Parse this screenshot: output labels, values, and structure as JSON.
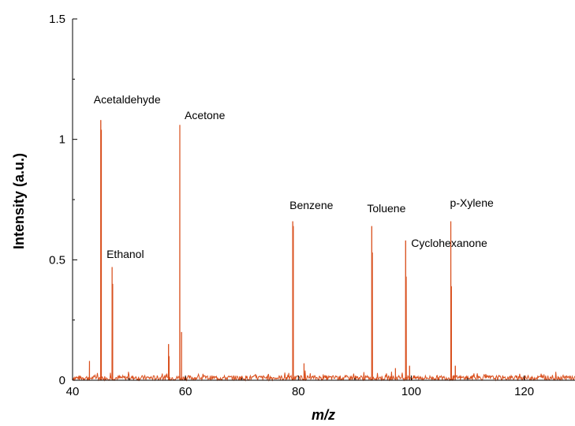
{
  "chart_data": {
    "type": "line",
    "title": "",
    "xlabel": "m/z",
    "ylabel": "Intensity (a.u.)",
    "xlim": [
      40,
      129
    ],
    "ylim": [
      0,
      1.5
    ],
    "x_ticks": [
      40,
      60,
      80,
      100,
      120
    ],
    "y_ticks": [
      0,
      0.5,
      1,
      1.5
    ],
    "x_tick_labels": [
      "40",
      "60",
      "80",
      "100",
      "120"
    ],
    "y_tick_labels": [
      "0",
      "0.5",
      "1",
      "1.5"
    ],
    "grid": false,
    "line_color": "#d9501e",
    "noise_level": 0.02,
    "peaks": [
      {
        "x": 43,
        "y": 0.08
      },
      {
        "x": 45,
        "y": 1.08
      },
      {
        "x": 45.1,
        "y": 1.04
      },
      {
        "x": 47,
        "y": 0.47
      },
      {
        "x": 47.1,
        "y": 0.4
      },
      {
        "x": 57,
        "y": 0.15
      },
      {
        "x": 57.1,
        "y": 0.1
      },
      {
        "x": 59,
        "y": 1.06
      },
      {
        "x": 59.3,
        "y": 0.2
      },
      {
        "x": 79,
        "y": 0.66
      },
      {
        "x": 79.1,
        "y": 0.64
      },
      {
        "x": 81,
        "y": 0.07
      },
      {
        "x": 93,
        "y": 0.64
      },
      {
        "x": 93.1,
        "y": 0.53
      },
      {
        "x": 97.2,
        "y": 0.05
      },
      {
        "x": 99,
        "y": 0.58
      },
      {
        "x": 99.1,
        "y": 0.43
      },
      {
        "x": 99.7,
        "y": 0.06
      },
      {
        "x": 107,
        "y": 0.66
      },
      {
        "x": 107.1,
        "y": 0.39
      },
      {
        "x": 107.8,
        "y": 0.06
      }
    ],
    "annotations": [
      {
        "text": "Acetaldehyde",
        "x": 45
      },
      {
        "text": "Ethanol",
        "x": 47
      },
      {
        "text": "Acetone",
        "x": 59
      },
      {
        "text": "Benzene",
        "x": 79
      },
      {
        "text": "Toluene",
        "x": 93
      },
      {
        "text": "Cyclohexanone",
        "x": 99
      },
      {
        "text": "p-Xylene",
        "x": 107
      }
    ]
  }
}
